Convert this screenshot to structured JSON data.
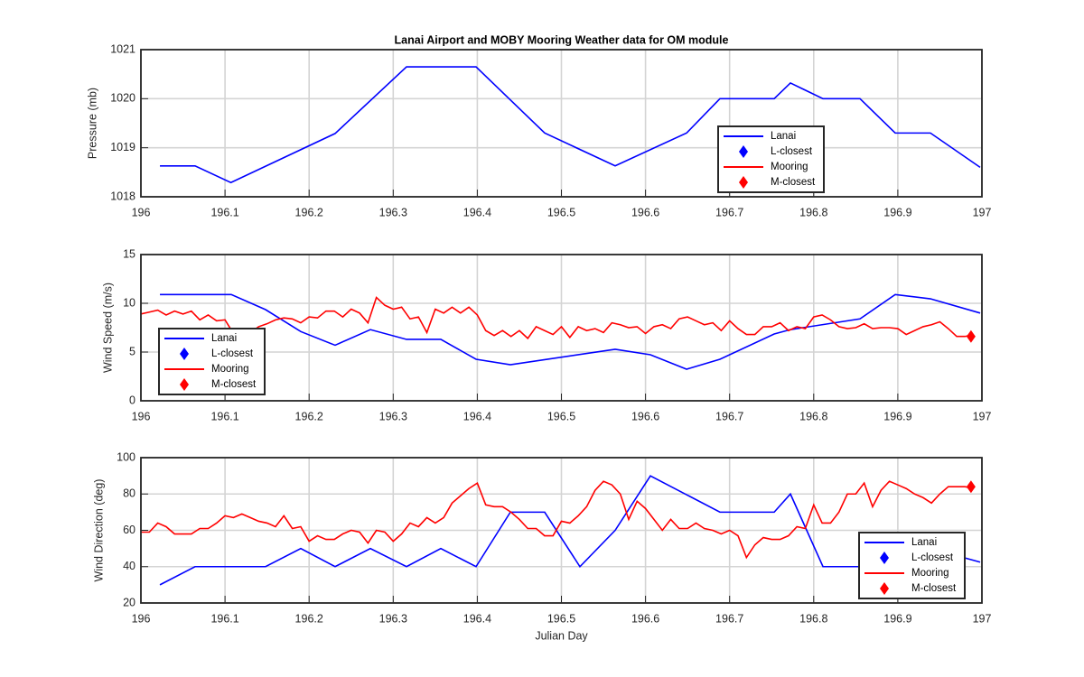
{
  "chart_data": [
    {
      "type": "line",
      "title": "Lanai Airport and MOBY Mooring Weather data for OM module",
      "ylabel": "Pressure (mb)",
      "xlim": [
        196,
        197
      ],
      "ylim": [
        1018,
        1021
      ],
      "xticks": [
        196,
        196.1,
        196.2,
        196.3,
        196.4,
        196.5,
        196.6,
        196.7,
        196.8,
        196.9,
        197
      ],
      "yticks": [
        1018,
        1019,
        1020,
        1021
      ],
      "grid": true,
      "legend": "east",
      "series": [
        {
          "name": "Lanai",
          "color": "#0000ff",
          "marker": "none",
          "x": [
            196.0226,
            196.0644,
            196.107,
            196.2309,
            196.3158,
            196.3985,
            196.4801,
            196.5639,
            196.6488,
            196.6885,
            196.753,
            196.7723,
            196.811,
            196.855,
            196.8969,
            196.9388,
            196.9979
          ],
          "values": [
            1018.63,
            1018.63,
            1018.29,
            1019.29,
            1020.65,
            1020.65,
            1019.3,
            1018.63,
            1019.3,
            1020.0,
            1020.0,
            1020.32,
            1020.0,
            1020.0,
            1019.3,
            1019.3,
            1018.6
          ]
        },
        {
          "name": "L-closest",
          "color": "#0000ff",
          "marker": "diamond",
          "x": [],
          "values": []
        },
        {
          "name": "Mooring",
          "color": "#ff0000",
          "marker": "none",
          "x": [],
          "values": []
        },
        {
          "name": "M-closest",
          "color": "#ff0000",
          "marker": "diamond",
          "x": [],
          "values": []
        }
      ]
    },
    {
      "type": "line",
      "ylabel": "Wind Speed (m/s)",
      "xlim": [
        196,
        197
      ],
      "ylim": [
        0,
        15
      ],
      "xticks": [
        196,
        196.1,
        196.2,
        196.3,
        196.4,
        196.5,
        196.6,
        196.7,
        196.8,
        196.9,
        197
      ],
      "yticks": [
        0,
        5,
        10,
        15
      ],
      "grid": true,
      "legend": "southwest",
      "series": [
        {
          "name": "Lanai",
          "color": "#0000ff",
          "marker": "none",
          "x": [
            196.0226,
            196.1074,
            196.1482,
            196.1901,
            196.2309,
            196.2728,
            196.3158,
            196.3566,
            196.3985,
            196.4393,
            196.5639,
            196.6058,
            196.6488,
            196.6885,
            196.753,
            196.7723,
            196.855,
            196.8969,
            196.9388,
            196.9979
          ],
          "values": [
            10.9,
            10.9,
            9.35,
            7.1,
            5.7,
            7.3,
            6.3,
            6.3,
            4.26,
            3.7,
            5.28,
            4.72,
            3.24,
            4.26,
            6.85,
            7.3,
            8.4,
            10.9,
            10.46,
            9.0
          ]
        },
        {
          "name": "L-closest",
          "color": "#0000ff",
          "marker": "diamond",
          "x": [],
          "values": []
        },
        {
          "name": "Mooring",
          "color": "#ff0000",
          "marker": "none",
          "x": [
            196,
            196.01,
            196.02,
            196.03,
            196.04,
            196.05,
            196.06,
            196.07,
            196.08,
            196.09,
            196.1,
            196.11,
            196.12,
            196.13,
            196.14,
            196.15,
            196.16,
            196.17,
            196.18,
            196.19,
            196.2,
            196.21,
            196.22,
            196.23,
            196.24,
            196.25,
            196.26,
            196.27,
            196.28,
            196.29,
            196.3,
            196.31,
            196.32,
            196.33,
            196.34,
            196.35,
            196.36,
            196.37,
            196.38,
            196.39,
            196.4,
            196.41,
            196.42,
            196.43,
            196.44,
            196.45,
            196.46,
            196.47,
            196.48,
            196.49,
            196.5,
            196.51,
            196.52,
            196.53,
            196.54,
            196.55,
            196.56,
            196.57,
            196.58,
            196.59,
            196.6,
            196.61,
            196.62,
            196.63,
            196.64,
            196.65,
            196.66,
            196.67,
            196.68,
            196.69,
            196.7,
            196.71,
            196.72,
            196.73,
            196.74,
            196.75,
            196.76,
            196.77,
            196.78,
            196.79,
            196.8,
            196.81,
            196.82,
            196.83,
            196.84,
            196.85,
            196.86,
            196.87,
            196.88,
            196.89,
            196.9,
            196.91,
            196.92,
            196.93,
            196.94,
            196.95,
            196.96,
            196.97,
            196.98,
            196.99
          ],
          "values": [
            8.9,
            9.1,
            9.3,
            8.8,
            9.2,
            8.9,
            9.2,
            8.3,
            8.8,
            8.2,
            8.3,
            6.9,
            7.2,
            7.0,
            7.6,
            7.9,
            8.3,
            8.5,
            8.4,
            8.0,
            8.6,
            8.5,
            9.2,
            9.2,
            8.6,
            9.4,
            9.0,
            8.0,
            10.6,
            9.8,
            9.4,
            9.6,
            8.4,
            8.6,
            7.0,
            9.4,
            9.0,
            9.6,
            9.0,
            9.6,
            8.8,
            7.2,
            6.7,
            7.2,
            6.6,
            7.2,
            6.4,
            7.6,
            7.2,
            6.8,
            7.6,
            6.5,
            7.6,
            7.2,
            7.4,
            7.0,
            8.0,
            7.8,
            7.5,
            7.6,
            6.9,
            7.6,
            7.8,
            7.4,
            8.4,
            8.6,
            8.2,
            7.8,
            8.0,
            7.2,
            8.2,
            7.4,
            6.8,
            6.8,
            7.6,
            7.6,
            8.0,
            7.2,
            7.6,
            7.4,
            8.6,
            8.8,
            8.3,
            7.6,
            7.4,
            7.5,
            7.9,
            7.4,
            7.5,
            7.5,
            7.4,
            6.8,
            7.2,
            7.6,
            7.8,
            8.1,
            7.4,
            6.6,
            6.6,
            6.8
          ]
        },
        {
          "name": "M-closest",
          "color": "#ff0000",
          "marker": "diamond",
          "x": [
            196.987
          ],
          "values": [
            6.6
          ]
        }
      ]
    },
    {
      "type": "line",
      "ylabel": "Wind Direction (deg)",
      "xlabel": "Julian Day",
      "xlim": [
        196,
        197
      ],
      "ylim": [
        20,
        100
      ],
      "xticks": [
        196,
        196.1,
        196.2,
        196.3,
        196.4,
        196.5,
        196.6,
        196.7,
        196.8,
        196.9,
        197
      ],
      "yticks": [
        20,
        40,
        60,
        80,
        100
      ],
      "grid": true,
      "legend": "southeast",
      "series": [
        {
          "name": "Lanai",
          "color": "#0000ff",
          "marker": "none",
          "x": [
            196.0226,
            196.0644,
            196.1482,
            196.1901,
            196.2309,
            196.2728,
            196.3158,
            196.3566,
            196.3985,
            196.4393,
            196.4801,
            196.522,
            196.5639,
            196.6058,
            196.6885,
            196.753,
            196.7723,
            196.811,
            196.855,
            196.8969,
            196.9388,
            196.9979
          ],
          "values": [
            30,
            40,
            40,
            50,
            40,
            50,
            40,
            50,
            40,
            70,
            70,
            40,
            60,
            90,
            70,
            70,
            80,
            40,
            40,
            40,
            50,
            42.5
          ]
        },
        {
          "name": "L-closest",
          "color": "#0000ff",
          "marker": "diamond",
          "x": [],
          "values": []
        },
        {
          "name": "Mooring",
          "color": "#ff0000",
          "marker": "none",
          "x": [
            196,
            196.01,
            196.02,
            196.03,
            196.04,
            196.05,
            196.06,
            196.07,
            196.08,
            196.09,
            196.1,
            196.11,
            196.12,
            196.13,
            196.14,
            196.15,
            196.16,
            196.17,
            196.18,
            196.19,
            196.2,
            196.21,
            196.22,
            196.23,
            196.24,
            196.25,
            196.26,
            196.27,
            196.28,
            196.29,
            196.3,
            196.31,
            196.32,
            196.33,
            196.34,
            196.35,
            196.36,
            196.37,
            196.38,
            196.39,
            196.4,
            196.41,
            196.42,
            196.43,
            196.44,
            196.45,
            196.46,
            196.47,
            196.48,
            196.49,
            196.5,
            196.51,
            196.52,
            196.53,
            196.54,
            196.55,
            196.56,
            196.57,
            196.58,
            196.59,
            196.6,
            196.61,
            196.62,
            196.63,
            196.64,
            196.65,
            196.66,
            196.67,
            196.68,
            196.69,
            196.7,
            196.71,
            196.72,
            196.73,
            196.74,
            196.75,
            196.76,
            196.77,
            196.78,
            196.79,
            196.8,
            196.81,
            196.82,
            196.83,
            196.84,
            196.85,
            196.86,
            196.87,
            196.88,
            196.89,
            196.9,
            196.91,
            196.92,
            196.93,
            196.94,
            196.95,
            196.96,
            196.97,
            196.98,
            196.99
          ],
          "values": [
            59,
            59,
            64,
            62,
            58,
            58,
            58,
            61,
            61,
            64,
            68,
            67,
            69,
            67,
            65,
            64,
            62,
            68,
            61,
            62,
            54,
            57,
            55,
            55,
            58,
            60,
            59,
            53,
            60,
            59,
            54,
            58,
            64,
            62,
            67,
            64,
            67,
            75,
            79,
            83,
            86,
            74,
            73,
            73,
            70,
            66,
            61,
            61,
            57,
            57,
            65,
            64,
            68,
            73,
            82,
            87,
            85,
            80,
            66,
            76,
            72,
            66,
            60,
            66,
            61,
            61,
            64,
            61,
            60,
            58,
            60,
            57,
            45,
            52,
            56,
            55,
            55,
            57,
            62,
            61,
            74,
            64,
            64,
            70,
            80,
            80,
            86,
            73,
            82,
            87,
            85,
            83,
            80,
            78,
            75,
            80,
            84,
            84,
            84,
            83
          ]
        },
        {
          "name": "M-closest",
          "color": "#ff0000",
          "marker": "diamond",
          "x": [
            196.987
          ],
          "values": [
            84
          ]
        }
      ]
    }
  ]
}
